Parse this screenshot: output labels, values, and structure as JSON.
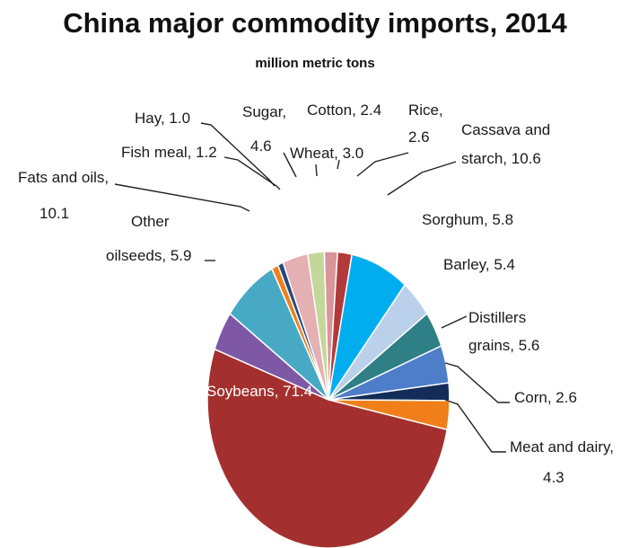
{
  "chart_data": {
    "type": "pie",
    "title": "China major commodity imports, 2014",
    "subtitle": "million metric tons",
    "slices": [
      {
        "label": "Cotton, 2.4",
        "name": "Cotton",
        "value": 2.4,
        "color": "#D9959A"
      },
      {
        "label": "Rice, 2.6",
        "name": "Rice",
        "value": 2.6,
        "color": "#B23A3A"
      },
      {
        "label": "Cassava and starch, 10.6",
        "name": "Cassava and starch",
        "value": 10.6,
        "color": "#00AEEF"
      },
      {
        "label": "Sorghum, 5.8",
        "name": "Sorghum",
        "value": 5.8,
        "color": "#BBD0EA"
      },
      {
        "label": "Barley, 5.4",
        "name": "Barley",
        "value": 5.4,
        "color": "#2E7F86"
      },
      {
        "label": "Distillers grains, 5.6",
        "name": "Distillers grains",
        "value": 5.6,
        "color": "#4E7DC9"
      },
      {
        "label": "Corn, 2.6",
        "name": "Corn",
        "value": 2.6,
        "color": "#142C5A"
      },
      {
        "label": "Meat and dairy, 4.3",
        "name": "Meat and dairy",
        "value": 4.3,
        "color": "#F07F1A"
      },
      {
        "label": "Soybeans, 71.4",
        "name": "Soybeans",
        "value": 71.4,
        "color": "#A3302E"
      },
      {
        "label": "Other oilseeds, 5.9",
        "name": "Other oilseeds",
        "value": 5.9,
        "color": "#7E57A5"
      },
      {
        "label": "Fats and oils, 10.1",
        "name": "Fats and oils",
        "value": 10.1,
        "color": "#48A9C5"
      },
      {
        "label": "Fish meal, 1.2",
        "name": "Fish meal",
        "value": 1.2,
        "color": "#F07F1A"
      },
      {
        "label": "Hay, 1.0",
        "name": "Hay",
        "value": 1.0,
        "color": "#25497E"
      },
      {
        "label": "Sugar, 4.6",
        "name": "Sugar",
        "value": 4.6,
        "color": "#E5B0B3"
      },
      {
        "label": "Wheat, 3.0",
        "name": "Wheat",
        "value": 3.0,
        "color": "#C4D79B"
      }
    ]
  }
}
